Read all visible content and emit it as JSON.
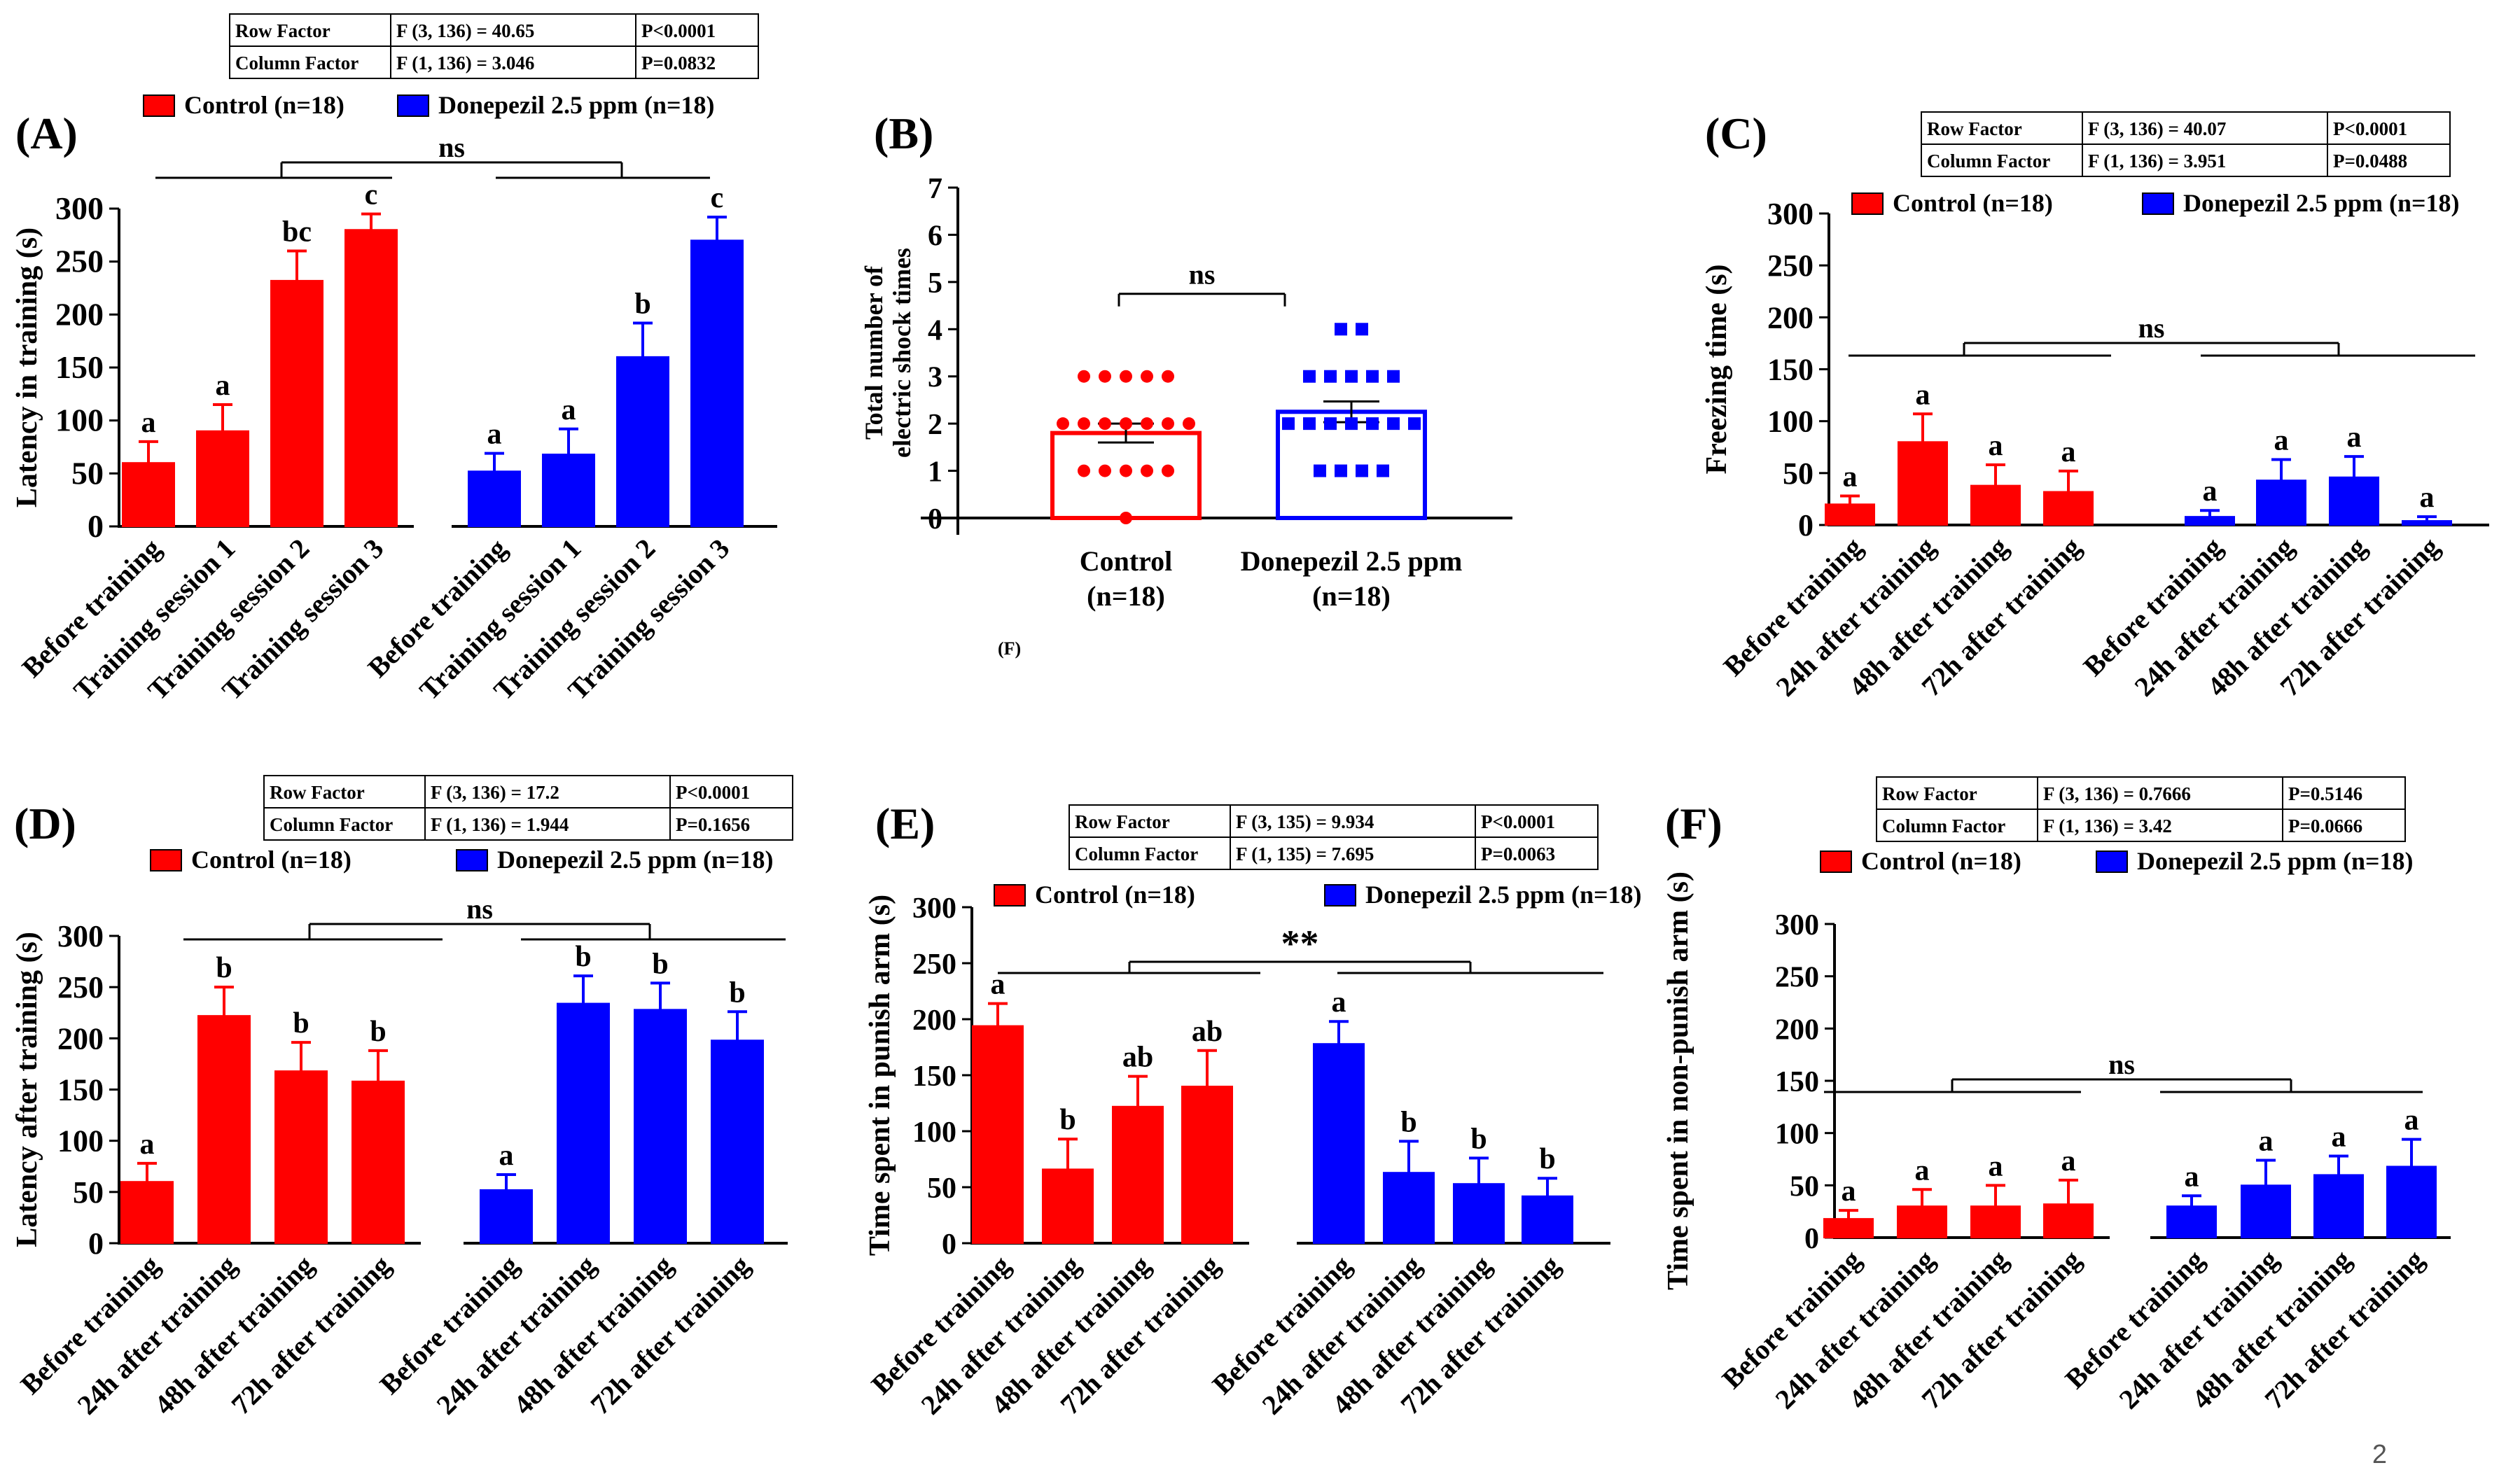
{
  "colors": {
    "control": "#ff0000",
    "donepezil": "#0000ff",
    "axis": "#000000",
    "text": "#000000"
  },
  "page_number": "2",
  "chart_data": [
    {
      "panel": "(A)",
      "type": "bar",
      "ylabel": "Latency in training (s)",
      "ylim": [
        0,
        300
      ],
      "yticks": [
        0,
        50,
        100,
        150,
        200,
        250,
        300
      ],
      "stats": {
        "row_label": "Row Factor",
        "row_f": "F (3, 136) = 40.65",
        "row_p": "P<0.0001",
        "col_label": "Column Factor",
        "col_f": "F (1, 136) = 3.046",
        "col_p": "P=0.0832"
      },
      "legend": [
        "Control (n=18)",
        "Donepezil 2.5 ppm (n=18)"
      ],
      "significance": "ns",
      "categories": [
        "Before training",
        "Training session 1",
        "Training session 2",
        "Training session 3"
      ],
      "series": [
        {
          "name": "Control (n=18)",
          "color": "#ff0000",
          "values": [
            60,
            90,
            232,
            280
          ],
          "errors": [
            20,
            25,
            28,
            15
          ],
          "letters": [
            "a",
            "a",
            "bc",
            "c"
          ]
        },
        {
          "name": "Donepezil 2.5 ppm (n=18)",
          "color": "#0000ff",
          "values": [
            52,
            68,
            160,
            270
          ],
          "errors": [
            17,
            24,
            32,
            22
          ],
          "letters": [
            "a",
            "a",
            "b",
            "c"
          ]
        }
      ]
    },
    {
      "panel": "(B)",
      "type": "scatter",
      "ylabel": "Total number of electric shock times",
      "ylim": [
        0,
        7
      ],
      "yticks": [
        0,
        1,
        2,
        3,
        4,
        5,
        6,
        7
      ],
      "significance": "ns",
      "footnote": "(F)",
      "groups": [
        {
          "name": "Control",
          "n": "(n=18)",
          "color": "#ff0000",
          "mean": 1.8,
          "sem": 0.2,
          "points": [
            0,
            1,
            1,
            1,
            1,
            1,
            2,
            2,
            2,
            2,
            2,
            2,
            2,
            3,
            3,
            3,
            3,
            3
          ]
        },
        {
          "name": "Donepezil 2.5 ppm",
          "n": "(n=18)",
          "color": "#0000ff",
          "mean": 2.25,
          "sem": 0.22,
          "points": [
            1,
            1,
            1,
            1,
            2,
            2,
            2,
            2,
            2,
            2,
            2,
            3,
            3,
            3,
            3,
            3,
            4,
            4
          ]
        }
      ]
    },
    {
      "panel": "(C)",
      "type": "bar",
      "ylabel": "Freezing time (s)",
      "ylim": [
        0,
        300
      ],
      "yticks": [
        0,
        50,
        100,
        150,
        200,
        250,
        300
      ],
      "stats": {
        "row_label": "Row Factor",
        "row_f": "F (3, 136) = 40.07",
        "row_p": "P<0.0001",
        "col_label": "Column Factor",
        "col_f": "F (1, 136) = 3.951",
        "col_p": "P=0.0488"
      },
      "legend": [
        "Control (n=18)",
        "Donepezil 2.5 ppm (n=18)"
      ],
      "significance": "ns",
      "categories": [
        "Before training",
        "24h after training",
        "48h after training",
        "72h after training"
      ],
      "series": [
        {
          "name": "Control (n=18)",
          "color": "#ff0000",
          "values": [
            20,
            80,
            38,
            32
          ],
          "errors": [
            8,
            27,
            20,
            20
          ],
          "letters": [
            "a",
            "a",
            "a",
            "a"
          ]
        },
        {
          "name": "Donepezil 2.5 ppm (n=18)",
          "color": "#0000ff",
          "values": [
            8,
            43,
            46,
            4
          ],
          "errors": [
            6,
            20,
            20,
            4
          ],
          "letters": [
            "a",
            "a",
            "a",
            "a"
          ]
        }
      ]
    },
    {
      "panel": "(D)",
      "type": "bar",
      "ylabel": "Latency after training (s)",
      "ylim": [
        0,
        300
      ],
      "yticks": [
        0,
        50,
        100,
        150,
        200,
        250,
        300
      ],
      "stats": {
        "row_label": "Row Factor",
        "row_f": "F (3, 136) = 17.2",
        "row_p": "P<0.0001",
        "col_label": "Column Factor",
        "col_f": "F (1, 136) = 1.944",
        "col_p": "P=0.1656"
      },
      "legend": [
        "Control (n=18)",
        "Donepezil 2.5 ppm (n=18)"
      ],
      "significance": "ns",
      "categories": [
        "Before training",
        "24h after training",
        "48h after training",
        "72h after training"
      ],
      "series": [
        {
          "name": "Control (n=18)",
          "color": "#ff0000",
          "values": [
            60,
            222,
            168,
            158
          ],
          "errors": [
            18,
            28,
            28,
            30
          ],
          "letters": [
            "a",
            "b",
            "b",
            "b"
          ]
        },
        {
          "name": "Donepezil 2.5 ppm (n=18)",
          "color": "#0000ff",
          "values": [
            52,
            234,
            228,
            198
          ],
          "errors": [
            15,
            27,
            26,
            28
          ],
          "letters": [
            "a",
            "b",
            "b",
            "b"
          ]
        }
      ]
    },
    {
      "panel": "(E)",
      "type": "bar",
      "ylabel": "Time spent in punish arm (s)",
      "ylim": [
        0,
        300
      ],
      "yticks": [
        0,
        50,
        100,
        150,
        200,
        250,
        300
      ],
      "stats": {
        "row_label": "Row Factor",
        "row_f": "F (3, 135) = 9.934",
        "row_p": "P<0.0001",
        "col_label": "Column Factor",
        "col_f": "F (1, 135) = 7.695",
        "col_p": "P=0.0063"
      },
      "legend": [
        "Control (n=18)",
        "Donepezil 2.5 ppm (n=18)"
      ],
      "significance": "**",
      "categories": [
        "Before training",
        "24h after training",
        "48h after training",
        "72h after training"
      ],
      "series": [
        {
          "name": "Control (n=18)",
          "color": "#ff0000",
          "values": [
            194,
            66,
            122,
            140
          ],
          "errors": [
            20,
            27,
            27,
            32
          ],
          "letters": [
            "a",
            "b",
            "ab",
            "ab"
          ]
        },
        {
          "name": "Donepezil 2.5 ppm (n=18)",
          "color": "#0000ff",
          "values": [
            178,
            63,
            53,
            42
          ],
          "errors": [
            20,
            28,
            23,
            16
          ],
          "letters": [
            "a",
            "b",
            "b",
            "b"
          ]
        }
      ]
    },
    {
      "panel": "(F)",
      "type": "bar",
      "ylabel": "Time spent in non-punish arm (s)",
      "ylim": [
        0,
        300
      ],
      "yticks": [
        0,
        50,
        100,
        150,
        200,
        250,
        300
      ],
      "stats": {
        "row_label": "Row Factor",
        "row_f": "F (3, 136) = 0.7666",
        "row_p": "P=0.5146",
        "col_label": "Column Factor",
        "col_f": "F (1, 136) = 3.42",
        "col_p": "P=0.0666"
      },
      "legend": [
        "Control (n=18)",
        "Donepezil 2.5 ppm (n=18)"
      ],
      "significance": "ns",
      "categories": [
        "Before training",
        "24h after training",
        "48h after training",
        "72h after training"
      ],
      "series": [
        {
          "name": "Control (n=18)",
          "color": "#ff0000",
          "values": [
            18,
            30,
            30,
            32
          ],
          "errors": [
            8,
            16,
            20,
            23
          ],
          "letters": [
            "a",
            "a",
            "a",
            "a"
          ]
        },
        {
          "name": "Donepezil 2.5 ppm (n=18)",
          "color": "#0000ff",
          "values": [
            30,
            50,
            60,
            68
          ],
          "errors": [
            10,
            24,
            18,
            26
          ],
          "letters": [
            "a",
            "a",
            "a",
            "a"
          ]
        }
      ]
    }
  ]
}
